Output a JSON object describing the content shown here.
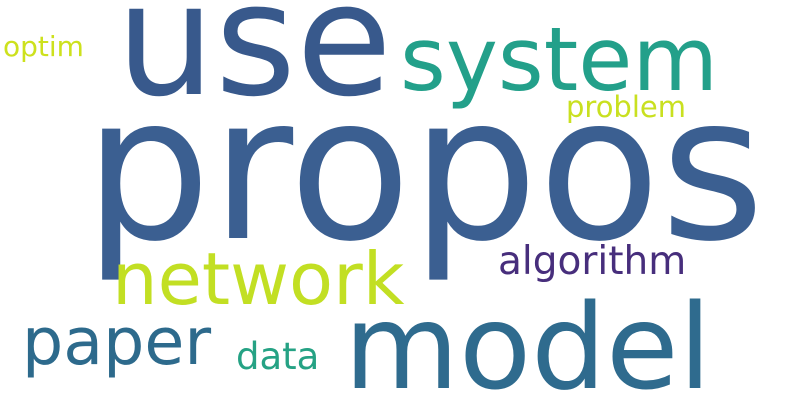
{
  "words": [
    {
      "text": "propos",
      "color": "#3b5f91"
    },
    {
      "text": "use",
      "color": "#38598c"
    },
    {
      "text": "system",
      "color": "#23a08a"
    },
    {
      "text": "model",
      "color": "#2f6b8e"
    },
    {
      "text": "network",
      "color": "#c2df23"
    },
    {
      "text": "paper",
      "color": "#2d6a8c"
    },
    {
      "text": "algorithm",
      "color": "#472e7c"
    },
    {
      "text": "problem",
      "color": "#c9e020"
    },
    {
      "text": "optim",
      "color": "#cde11d"
    },
    {
      "text": "data",
      "color": "#25a284"
    }
  ]
}
